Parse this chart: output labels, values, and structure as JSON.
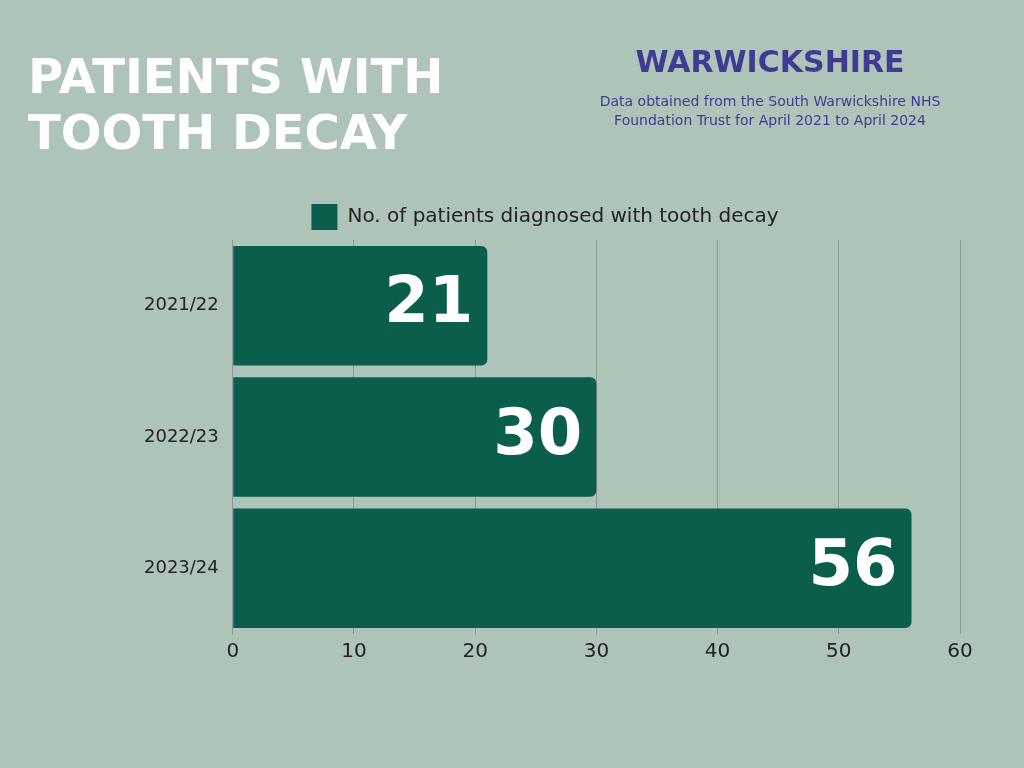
{
  "chart_data": {
    "type": "bar",
    "orientation": "horizontal",
    "title": "PATIENTS WITH TOOTH DECAY",
    "subtitle": "WARWICKSHIRE",
    "annotations": [
      "Data obtained from the South Warwickshire NHS Foundation Trust for April 2021 to April 2024"
    ],
    "categories": [
      "2021/22",
      "2022/23",
      "2023/24"
    ],
    "series": [
      {
        "name": "No. of patients diagnosed with tooth decay",
        "color": "#0b5e4b",
        "values": [
          21,
          30,
          56
        ]
      }
    ],
    "xlim": [
      0,
      60
    ],
    "xticks": [
      0,
      10,
      20,
      30,
      40,
      50,
      60
    ],
    "grid": "x",
    "legend": "top",
    "data_labels": true
  }
}
